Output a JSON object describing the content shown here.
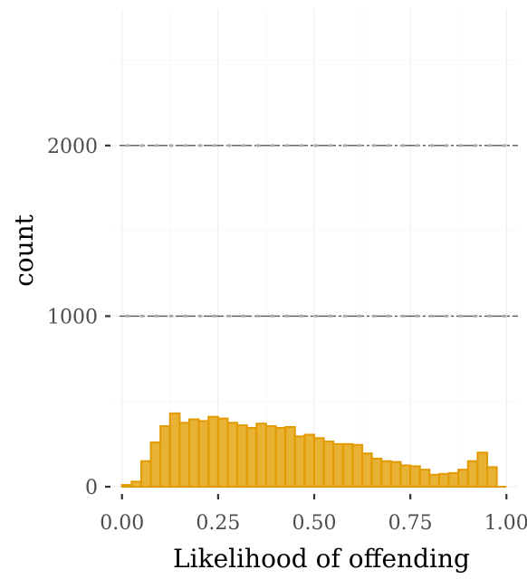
{
  "chart_data": {
    "type": "bar",
    "xlabel": "Likelihood of offending",
    "ylabel": "count",
    "xlim": [
      -0.03,
      1.03
    ],
    "ylim": [
      0,
      2800
    ],
    "x_ticks": [
      0,
      0.25,
      0.5,
      0.75,
      1
    ],
    "x_tick_labels": [
      "0.00",
      "0.25",
      "0.50",
      "0.75",
      "1.00"
    ],
    "y_ticks": [
      0,
      1000,
      2000
    ],
    "y_tick_labels": [
      "0",
      "1000",
      "2000"
    ],
    "reference_lines": [
      1000,
      2000
    ],
    "grid": true,
    "bin_width": 0.025,
    "bin_starts": [
      0.0,
      0.025,
      0.05,
      0.075,
      0.1,
      0.125,
      0.15,
      0.175,
      0.2,
      0.225,
      0.25,
      0.275,
      0.3,
      0.325,
      0.35,
      0.375,
      0.4,
      0.425,
      0.45,
      0.475,
      0.5,
      0.525,
      0.55,
      0.575,
      0.6,
      0.625,
      0.65,
      0.675,
      0.7,
      0.725,
      0.75,
      0.775,
      0.8,
      0.825,
      0.85,
      0.875,
      0.9,
      0.925,
      0.95,
      0.975
    ],
    "values": [
      10,
      30,
      150,
      260,
      355,
      430,
      375,
      395,
      385,
      410,
      400,
      375,
      360,
      345,
      370,
      355,
      345,
      350,
      295,
      305,
      285,
      265,
      250,
      250,
      245,
      195,
      165,
      150,
      145,
      125,
      120,
      100,
      70,
      75,
      80,
      100,
      150,
      200,
      115,
      0
    ],
    "colors": {
      "bar_fill": "#e8b235",
      "bar_stroke": "#e29a00",
      "reference_line": "#555555"
    }
  }
}
